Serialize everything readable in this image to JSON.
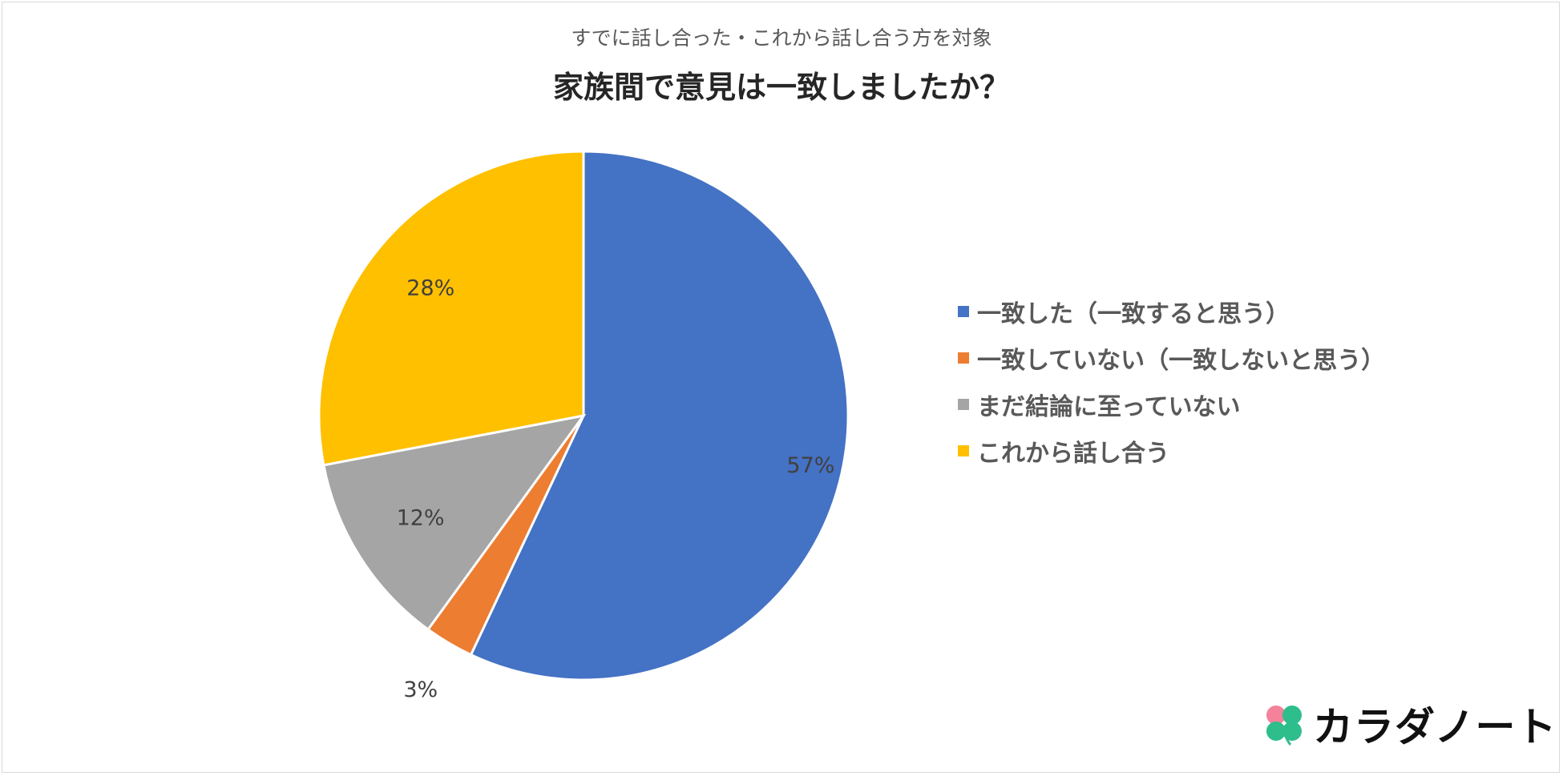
{
  "chart_data": {
    "type": "pie",
    "subtitle": "すでに話し合った・これから話し合う方を対象",
    "title": "家族間で意見は一致しましたか？",
    "slices": [
      {
        "label": "一致した（一致すると思う）",
        "value": 57,
        "display": "57%",
        "color": "#4472C4"
      },
      {
        "label": "一致していない（一致しないと思う）",
        "value": 3,
        "display": "3%",
        "color": "#ED7D31"
      },
      {
        "label": "まだ結論に至っていない",
        "value": 12,
        "display": "12%",
        "color": "#A5A5A5"
      },
      {
        "label": "これから話し合う",
        "value": 28,
        "display": "28%",
        "color": "#FFC000"
      }
    ],
    "legend_position": "right"
  },
  "brand": {
    "name": "カラダノート",
    "logo_colors": [
      "#F4829A",
      "#2DBE8C"
    ]
  }
}
